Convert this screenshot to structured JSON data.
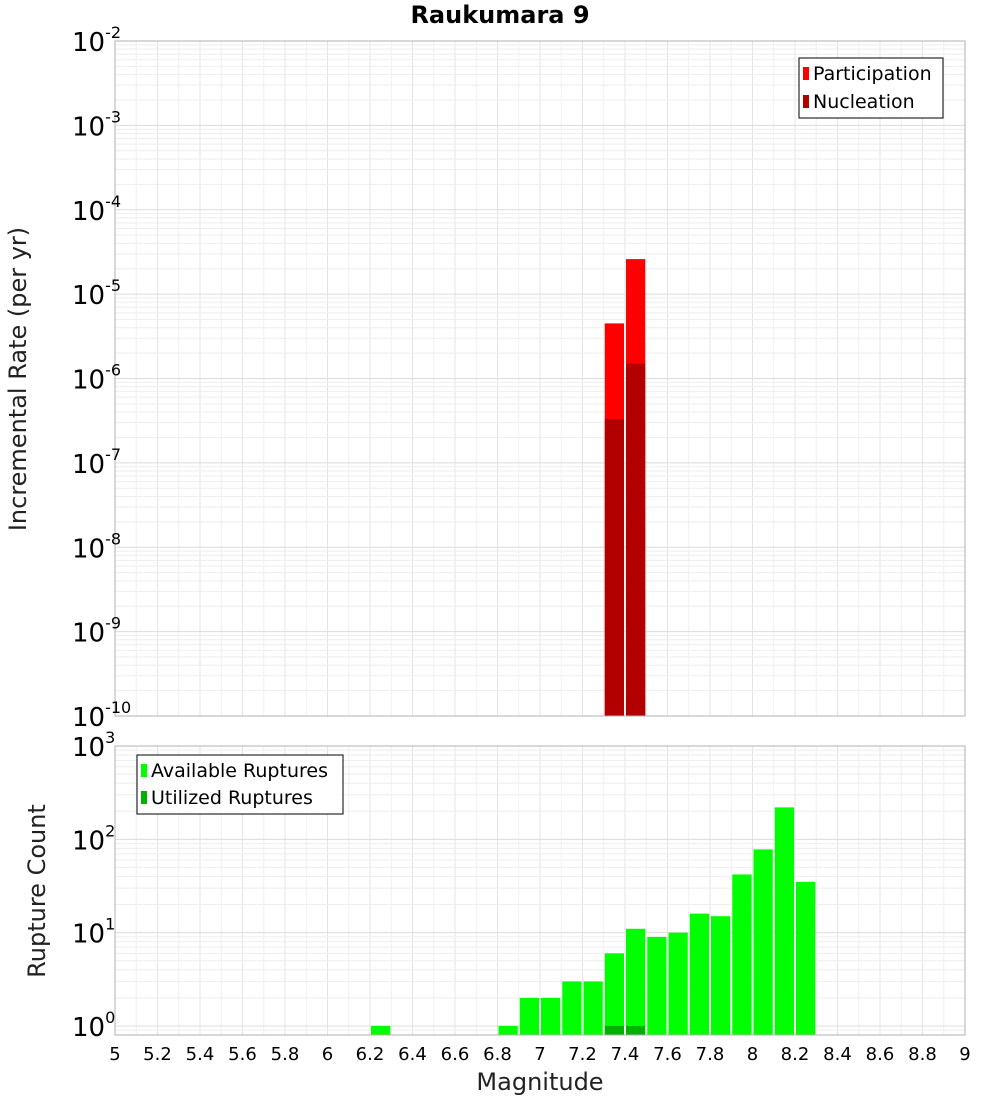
{
  "chart_data": [
    {
      "type": "bar",
      "title": "Raukumara 9",
      "ylabel": "Incremental Rate (per yr)",
      "xlabel": "",
      "xlim": [
        5,
        9
      ],
      "ylim": [
        1e-10,
        0.01
      ],
      "yscale": "log",
      "ytick_exponents": [
        "-10",
        "-9",
        "-8",
        "-7",
        "-6",
        "-5",
        "-4",
        "-3",
        "-2"
      ],
      "ytick_base": "10",
      "grid": true,
      "legend_position": "top-right",
      "bin_width": 0.1,
      "series": [
        {
          "name": "Participation",
          "color": "#ff0000",
          "x": [
            7.35,
            7.45
          ],
          "values": [
            4.5e-06,
            2.6e-05
          ]
        },
        {
          "name": "Nucleation",
          "color": "#b20000",
          "x": [
            7.35,
            7.45
          ],
          "values": [
            3.3e-07,
            1.5e-06
          ]
        }
      ]
    },
    {
      "type": "bar",
      "title": "",
      "ylabel": "Rupture Count",
      "xlabel": "Magnitude",
      "xlim": [
        5,
        9
      ],
      "ylim": [
        0.8,
        1000
      ],
      "yscale": "log",
      "ytick_exponents": [
        "0",
        "1",
        "2",
        "3"
      ],
      "ytick_base": "10",
      "xticks": [
        "5",
        "5.2",
        "5.4",
        "5.6",
        "5.8",
        "6",
        "6.2",
        "6.4",
        "6.6",
        "6.8",
        "7",
        "7.2",
        "7.4",
        "7.6",
        "7.8",
        "8",
        "8.2",
        "8.4",
        "8.6",
        "8.8",
        "9"
      ],
      "grid": true,
      "legend_position": "top-left",
      "bin_width": 0.1,
      "series": [
        {
          "name": "Available Ruptures",
          "color": "#00ff00",
          "x": [
            6.25,
            6.85,
            6.95,
            7.05,
            7.15,
            7.25,
            7.35,
            7.45,
            7.55,
            7.65,
            7.75,
            7.85,
            7.95,
            8.05,
            8.15,
            8.25
          ],
          "values": [
            1,
            1,
            2,
            2,
            3,
            3,
            6,
            11,
            9,
            10,
            16,
            15,
            42,
            78,
            220,
            35
          ]
        },
        {
          "name": "Utilized Ruptures",
          "color": "#00b200",
          "x": [
            7.35,
            7.45
          ],
          "values": [
            1,
            1
          ]
        }
      ]
    }
  ]
}
